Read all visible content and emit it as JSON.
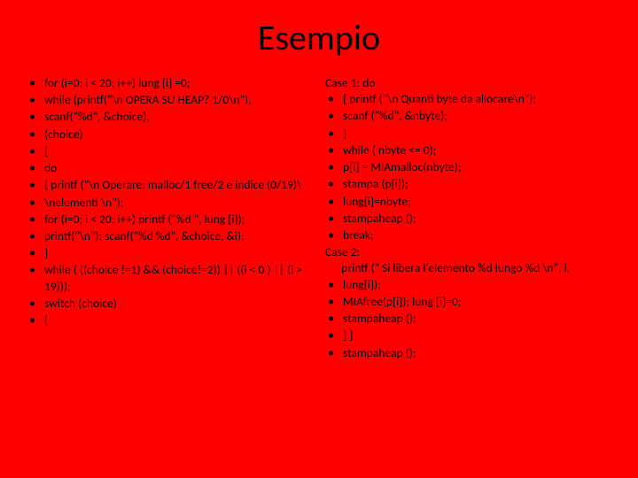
{
  "title": "Esempio",
  "left": {
    "items": [
      "for (i=0; i < 20; i++) lung [i] =0;",
      "while (printf(\"\\n OPERA SU HEAP? 1/0\\n\"),",
      "scanf(\"%d\", &choice),",
      "(choice)",
      "{",
      "do",
      "{ printf (\"\\n Operare: malloc/1 free/2 e indice (0/19)\\",
      "\\nelementi \\n\");",
      "for (i=0; i < 20; i++) printf (\"%d \", lung [i]);",
      "printf(\"\\n\"); scanf(\"%d %d\", &choice, &i);",
      "}",
      "while ( ((choice !=1) && (choice!=2)) || ((i < 0 ) || (i > 19)));",
      "switch (choice)",
      "{"
    ]
  },
  "right": {
    "line0": "Case 1: do",
    "items1": [
      "{ printf (\"\\n Quanti byte da allocare\\n\");",
      "scanf (\"%d\", &nbyte);",
      "}",
      "while ( nbyte <= 0);",
      "p[i] = MIAmalloc(nbyte);",
      "stampa (p[i]);",
      " lung[i]=nbyte;",
      "stampaheap ();",
      "break;"
    ],
    "line_case2": "Case 2:",
    "line_printf": "      printf (\" Si libera l'elemento %d lungo %d \\n\", i,",
    "items2": [
      " lung[i]);",
      "MIAfree(p[i]); lung [i]=0;",
      "stampaheap ();",
      "} }",
      "stampaheap ();"
    ]
  }
}
